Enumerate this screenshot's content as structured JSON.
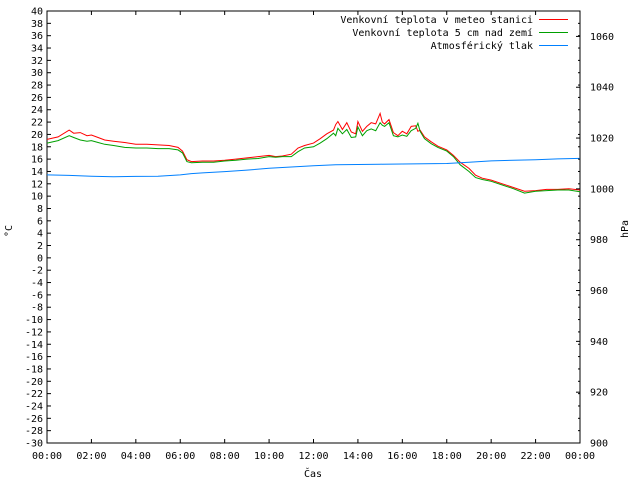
{
  "chart_data": {
    "type": "line",
    "xlabel": "Čas",
    "ylabel": "°C",
    "y2label": "hPa",
    "x_ticks": [
      "00:00",
      "02:00",
      "04:00",
      "06:00",
      "08:00",
      "10:00",
      "12:00",
      "14:00",
      "16:00",
      "18:00",
      "20:00",
      "22:00",
      "00:00"
    ],
    "x_tick_hours": [
      0,
      2,
      4,
      6,
      8,
      10,
      12,
      14,
      16,
      18,
      20,
      22,
      24
    ],
    "xlim_hours": [
      0,
      24
    ],
    "ylim": [
      -30,
      40
    ],
    "y_ticks": [
      40,
      38,
      36,
      34,
      32,
      30,
      28,
      26,
      24,
      22,
      20,
      18,
      16,
      14,
      12,
      10,
      8,
      6,
      4,
      2,
      0,
      -2,
      -4,
      -6,
      -8,
      -10,
      -12,
      -14,
      -16,
      -18,
      -20,
      -22,
      -24,
      -26,
      -28,
      -30
    ],
    "y2lim": [
      900,
      1070
    ],
    "y2_ticks": [
      1060,
      1040,
      1020,
      1000,
      980,
      960,
      940,
      920,
      900
    ],
    "grid": false,
    "legend_position": "top-right",
    "colors": {
      "series_0": "#ff0000",
      "series_1": "#00a000",
      "series_2": "#0080ff"
    },
    "series": [
      {
        "name": "Venkovní teplota v meteo stanici",
        "axis": "left",
        "x_hours": [
          0,
          0.5,
          1,
          1.2,
          1.5,
          1.8,
          2,
          2.3,
          2.6,
          3,
          3.5,
          4,
          4.5,
          5,
          5.5,
          5.9,
          6.1,
          6.3,
          6.5,
          7,
          7.5,
          8,
          8.5,
          9,
          9.5,
          10,
          10.3,
          10.6,
          11,
          11.3,
          11.6,
          12,
          12.3,
          12.6,
          12.9,
          13,
          13.1,
          13.3,
          13.5,
          13.7,
          13.9,
          14,
          14.2,
          14.4,
          14.6,
          14.8,
          15,
          15.1,
          15.2,
          15.4,
          15.6,
          15.8,
          16,
          16.2,
          16.4,
          16.6,
          16.7,
          16.8,
          17,
          17.3,
          17.6,
          18,
          18.3,
          18.6,
          19,
          19.3,
          19.6,
          20,
          20.5,
          21,
          21.5,
          22,
          22.5,
          23,
          23.5,
          24
        ],
        "values": [
          19.2,
          19.6,
          20.7,
          20.2,
          20.3,
          19.8,
          19.9,
          19.5,
          19.1,
          18.9,
          18.7,
          18.4,
          18.4,
          18.3,
          18.2,
          17.9,
          17.3,
          15.9,
          15.6,
          15.7,
          15.7,
          15.8,
          16.0,
          16.2,
          16.4,
          16.6,
          16.4,
          16.5,
          16.8,
          17.8,
          18.2,
          18.6,
          19.3,
          20.1,
          20.7,
          21.6,
          22.1,
          20.8,
          21.9,
          20.4,
          20.1,
          22.1,
          20.5,
          21.3,
          21.9,
          21.7,
          23.4,
          22.0,
          21.7,
          22.4,
          20.3,
          19.8,
          20.5,
          20.1,
          21.3,
          21.4,
          20.5,
          20.7,
          19.6,
          18.8,
          18.1,
          17.5,
          16.6,
          15.5,
          14.5,
          13.4,
          12.9,
          12.6,
          12.0,
          11.4,
          10.8,
          10.9,
          11.1,
          11.1,
          11.2,
          11.0
        ]
      },
      {
        "name": "Venkovní teplota 5 cm nad zemí",
        "axis": "left",
        "x_hours": [
          0,
          0.5,
          1,
          1.2,
          1.5,
          1.8,
          2,
          2.3,
          2.6,
          3,
          3.5,
          4,
          4.5,
          5,
          5.5,
          5.9,
          6.1,
          6.3,
          6.5,
          7,
          7.5,
          8,
          8.5,
          9,
          9.5,
          10,
          10.3,
          10.6,
          11,
          11.3,
          11.6,
          12,
          12.3,
          12.6,
          12.9,
          13,
          13.1,
          13.3,
          13.5,
          13.7,
          13.9,
          14,
          14.2,
          14.4,
          14.6,
          14.8,
          15,
          15.1,
          15.2,
          15.4,
          15.6,
          15.8,
          16,
          16.2,
          16.4,
          16.6,
          16.7,
          16.8,
          17,
          17.3,
          17.6,
          18,
          18.3,
          18.6,
          19,
          19.3,
          19.6,
          20,
          20.5,
          21,
          21.5,
          22,
          22.5,
          23,
          23.5,
          24
        ],
        "values": [
          18.6,
          19.0,
          19.8,
          19.5,
          19.1,
          18.9,
          19.0,
          18.7,
          18.4,
          18.2,
          17.9,
          17.8,
          17.8,
          17.7,
          17.7,
          17.5,
          17.0,
          15.6,
          15.4,
          15.5,
          15.5,
          15.7,
          15.8,
          16.0,
          16.1,
          16.4,
          16.3,
          16.4,
          16.4,
          17.2,
          17.8,
          18.0,
          18.6,
          19.3,
          20.2,
          19.8,
          21.0,
          20.1,
          20.8,
          19.5,
          19.6,
          21.2,
          19.8,
          20.6,
          20.9,
          20.6,
          21.9,
          21.5,
          21.3,
          21.9,
          19.8,
          19.6,
          19.9,
          19.7,
          20.6,
          21.0,
          21.8,
          20.5,
          19.3,
          18.5,
          17.9,
          17.3,
          16.4,
          15.1,
          14.0,
          13.0,
          12.7,
          12.4,
          11.8,
          11.2,
          10.5,
          10.8,
          10.9,
          11.0,
          11.0,
          10.7
        ]
      },
      {
        "name": "Atmosférický tlak",
        "axis": "right",
        "x_hours": [
          0,
          1,
          2,
          3,
          4,
          5,
          6,
          6.5,
          7,
          8,
          9,
          10,
          11,
          12,
          13,
          14,
          15,
          16,
          17,
          18,
          19,
          20,
          21,
          22,
          23,
          24
        ],
        "values": [
          1005.5,
          1005.3,
          1005.0,
          1004.8,
          1004.9,
          1005.0,
          1005.5,
          1006.0,
          1006.3,
          1006.8,
          1007.4,
          1008.1,
          1008.6,
          1009.1,
          1009.5,
          1009.6,
          1009.7,
          1009.8,
          1009.9,
          1010.0,
          1010.5,
          1011.0,
          1011.3,
          1011.5,
          1011.8,
          1012.0
        ]
      }
    ]
  }
}
